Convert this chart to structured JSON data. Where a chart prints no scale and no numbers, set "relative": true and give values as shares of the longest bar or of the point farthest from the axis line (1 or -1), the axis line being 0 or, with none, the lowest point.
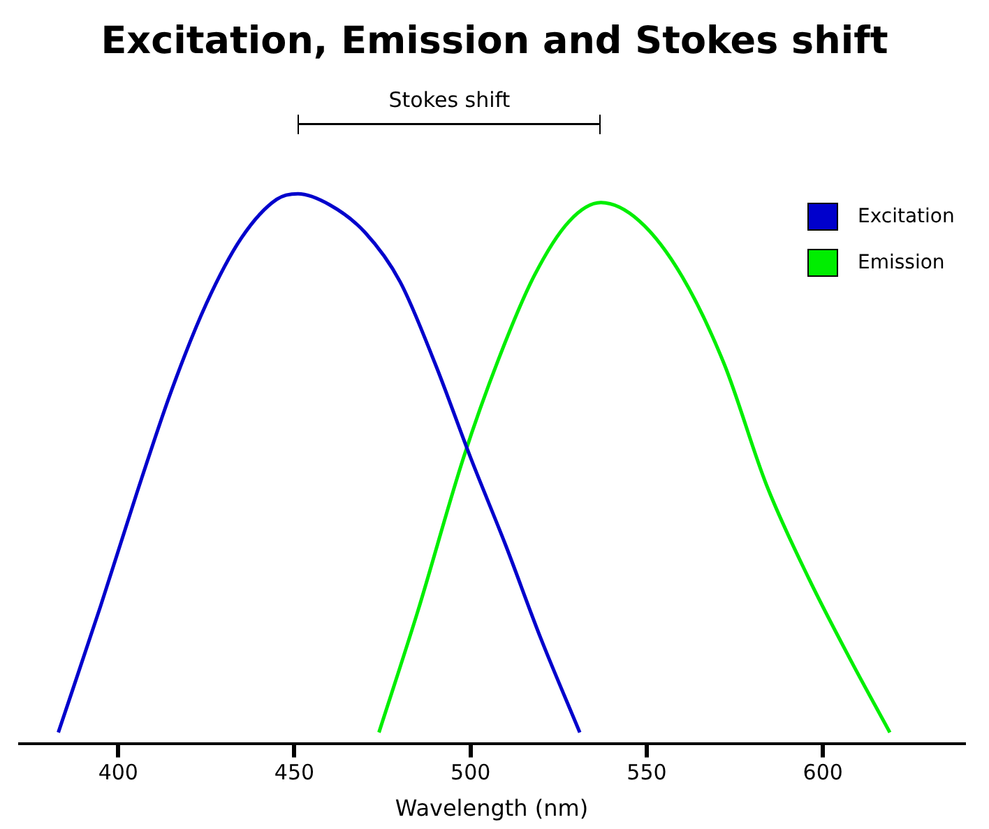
{
  "chart_data": {
    "type": "line",
    "title": "Excitation, Emission and Stokes shift",
    "xlabel": "Wavelength (nm)",
    "relative": true,
    "xlim": [
      372,
      640
    ],
    "xticks": [
      400,
      450,
      500,
      550,
      600
    ],
    "grid": false,
    "legend": "top right",
    "marker": "none",
    "line_style": "solid",
    "annotations": [
      "Stokes shift"
    ],
    "series": [
      {
        "name": "Excitation",
        "color": "#0000cc",
        "x": [
          383,
          395,
          405,
          415,
          425,
          435,
          445,
          451,
          460,
          470,
          480,
          490,
          500,
          510,
          520,
          531
        ],
        "values": [
          0.02,
          0.25,
          0.45,
          0.64,
          0.8,
          0.92,
          0.99,
          1,
          0.98,
          0.93,
          0.84,
          0.69,
          0.52,
          0.36,
          0.19,
          0.02
        ]
      },
      {
        "name": "Emission",
        "color": "#00ee00",
        "x": [
          474,
          485,
          498,
          508,
          518,
          528,
          537,
          548,
          560,
          572,
          584,
          596,
          608,
          619
        ],
        "values": [
          0.02,
          0.24,
          0.52,
          0.7,
          0.85,
          0.95,
          0.984,
          0.95,
          0.85,
          0.69,
          0.47,
          0.3,
          0.15,
          0.02
        ]
      }
    ]
  }
}
